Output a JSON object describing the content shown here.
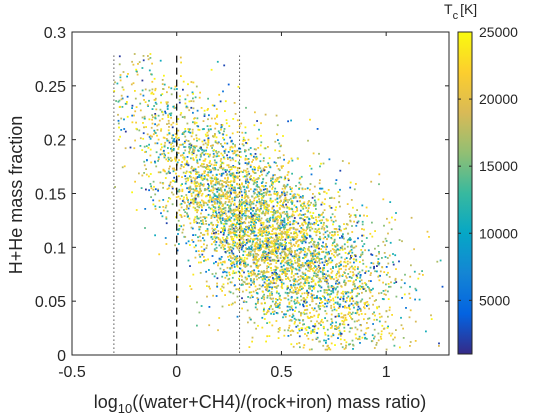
{
  "chart_data": {
    "type": "scatter",
    "xlabel_prefix": "log",
    "xlabel_sub": "10",
    "xlabel_suffix": "((water+CH4)/(rock+iron) mass ratio)",
    "ylabel": "H+He mass fraction",
    "xlim": [
      -0.5,
      1.3
    ],
    "ylim": [
      0,
      0.3
    ],
    "xticks": [
      -0.5,
      0,
      0.5,
      1
    ],
    "xtick_labels": [
      "-0.5",
      "0",
      "0.5",
      "1"
    ],
    "yticks": [
      0,
      0.05,
      0.1,
      0.15,
      0.2,
      0.25,
      0.3
    ],
    "ytick_labels": [
      "0",
      "0.05",
      "0.1",
      "0.15",
      "0.2",
      "0.25",
      "0.3"
    ],
    "colorbar": {
      "title_main": "T",
      "title_sub": "c",
      "title_unit": "[K]",
      "clim": [
        1000,
        25000
      ],
      "ticks": [
        5000,
        10000,
        15000,
        20000,
        25000
      ],
      "tick_labels": [
        "5000",
        "10000",
        "15000",
        "20000",
        "25000"
      ],
      "colormap": "parula"
    },
    "reference_lines": [
      {
        "x": -0.3,
        "style": "dotted"
      },
      {
        "x": 0,
        "style": "dashed"
      },
      {
        "x": 0.3,
        "style": "dotted"
      }
    ],
    "point_cloud": {
      "description_visible": "dense cloud of small colored points",
      "trend_centers": [
        [
          -0.15,
          0.22
        ],
        [
          0.1,
          0.16
        ],
        [
          0.35,
          0.12
        ],
        [
          0.6,
          0.09
        ],
        [
          0.9,
          0.06
        ],
        [
          1.15,
          0.04
        ]
      ],
      "x_range": [
        -0.3,
        1.28
      ],
      "y_range": [
        0.005,
        0.28
      ],
      "count": 5000
    }
  }
}
